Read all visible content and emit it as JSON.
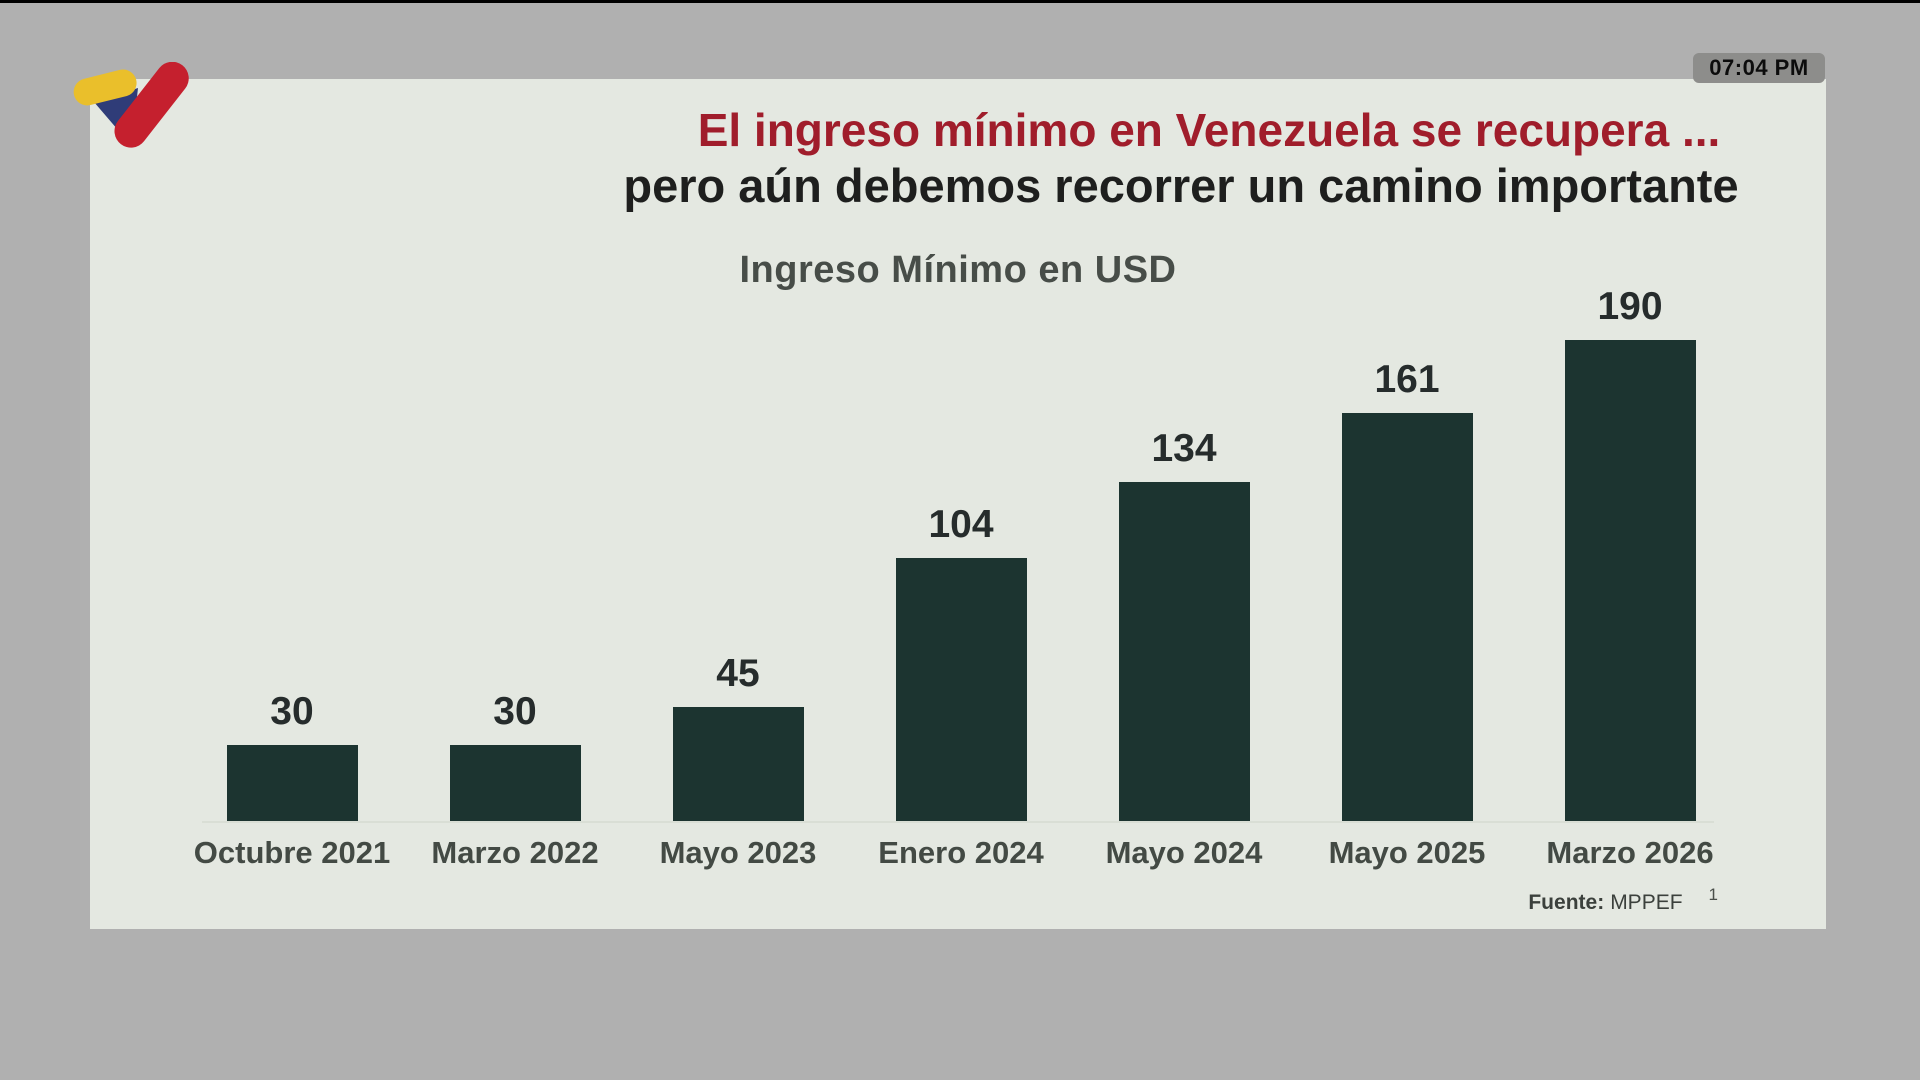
{
  "broadcast": {
    "timestamp": "07:04 PM",
    "channel_logo": "vtv-checkmark-logo"
  },
  "slide": {
    "title_line1": "El ingreso mínimo en Venezuela se recupera ...",
    "title_line2": "pero aún debemos recorrer un camino importante",
    "source_label": "Fuente:",
    "source_value": "MPPEF",
    "footnote_marker": "1"
  },
  "chart_data": {
    "type": "bar",
    "title": "Ingreso Mínimo en USD",
    "categories": [
      "Octubre 2021",
      "Marzo 2022",
      "Mayo 2023",
      "Enero 2024",
      "Mayo 2024",
      "Mayo 2025",
      "Marzo 2026"
    ],
    "values": [
      30,
      30,
      45,
      104,
      134,
      161,
      190
    ],
    "xlabel": "",
    "ylabel": "Ingreso Mínimo en USD",
    "ylim": [
      0,
      200
    ],
    "grid": false,
    "legend": false,
    "data_labels": true,
    "bar_color": "#1c3430"
  },
  "colors": {
    "title_red": "#a01d2b",
    "bar": "#1c3430",
    "slide_bg": "#e4e8e1",
    "frame_gray": "#b0b0b0",
    "logo_yellow": "#eabf2b",
    "logo_blue": "#2f3c78",
    "logo_red": "#c5202e"
  }
}
